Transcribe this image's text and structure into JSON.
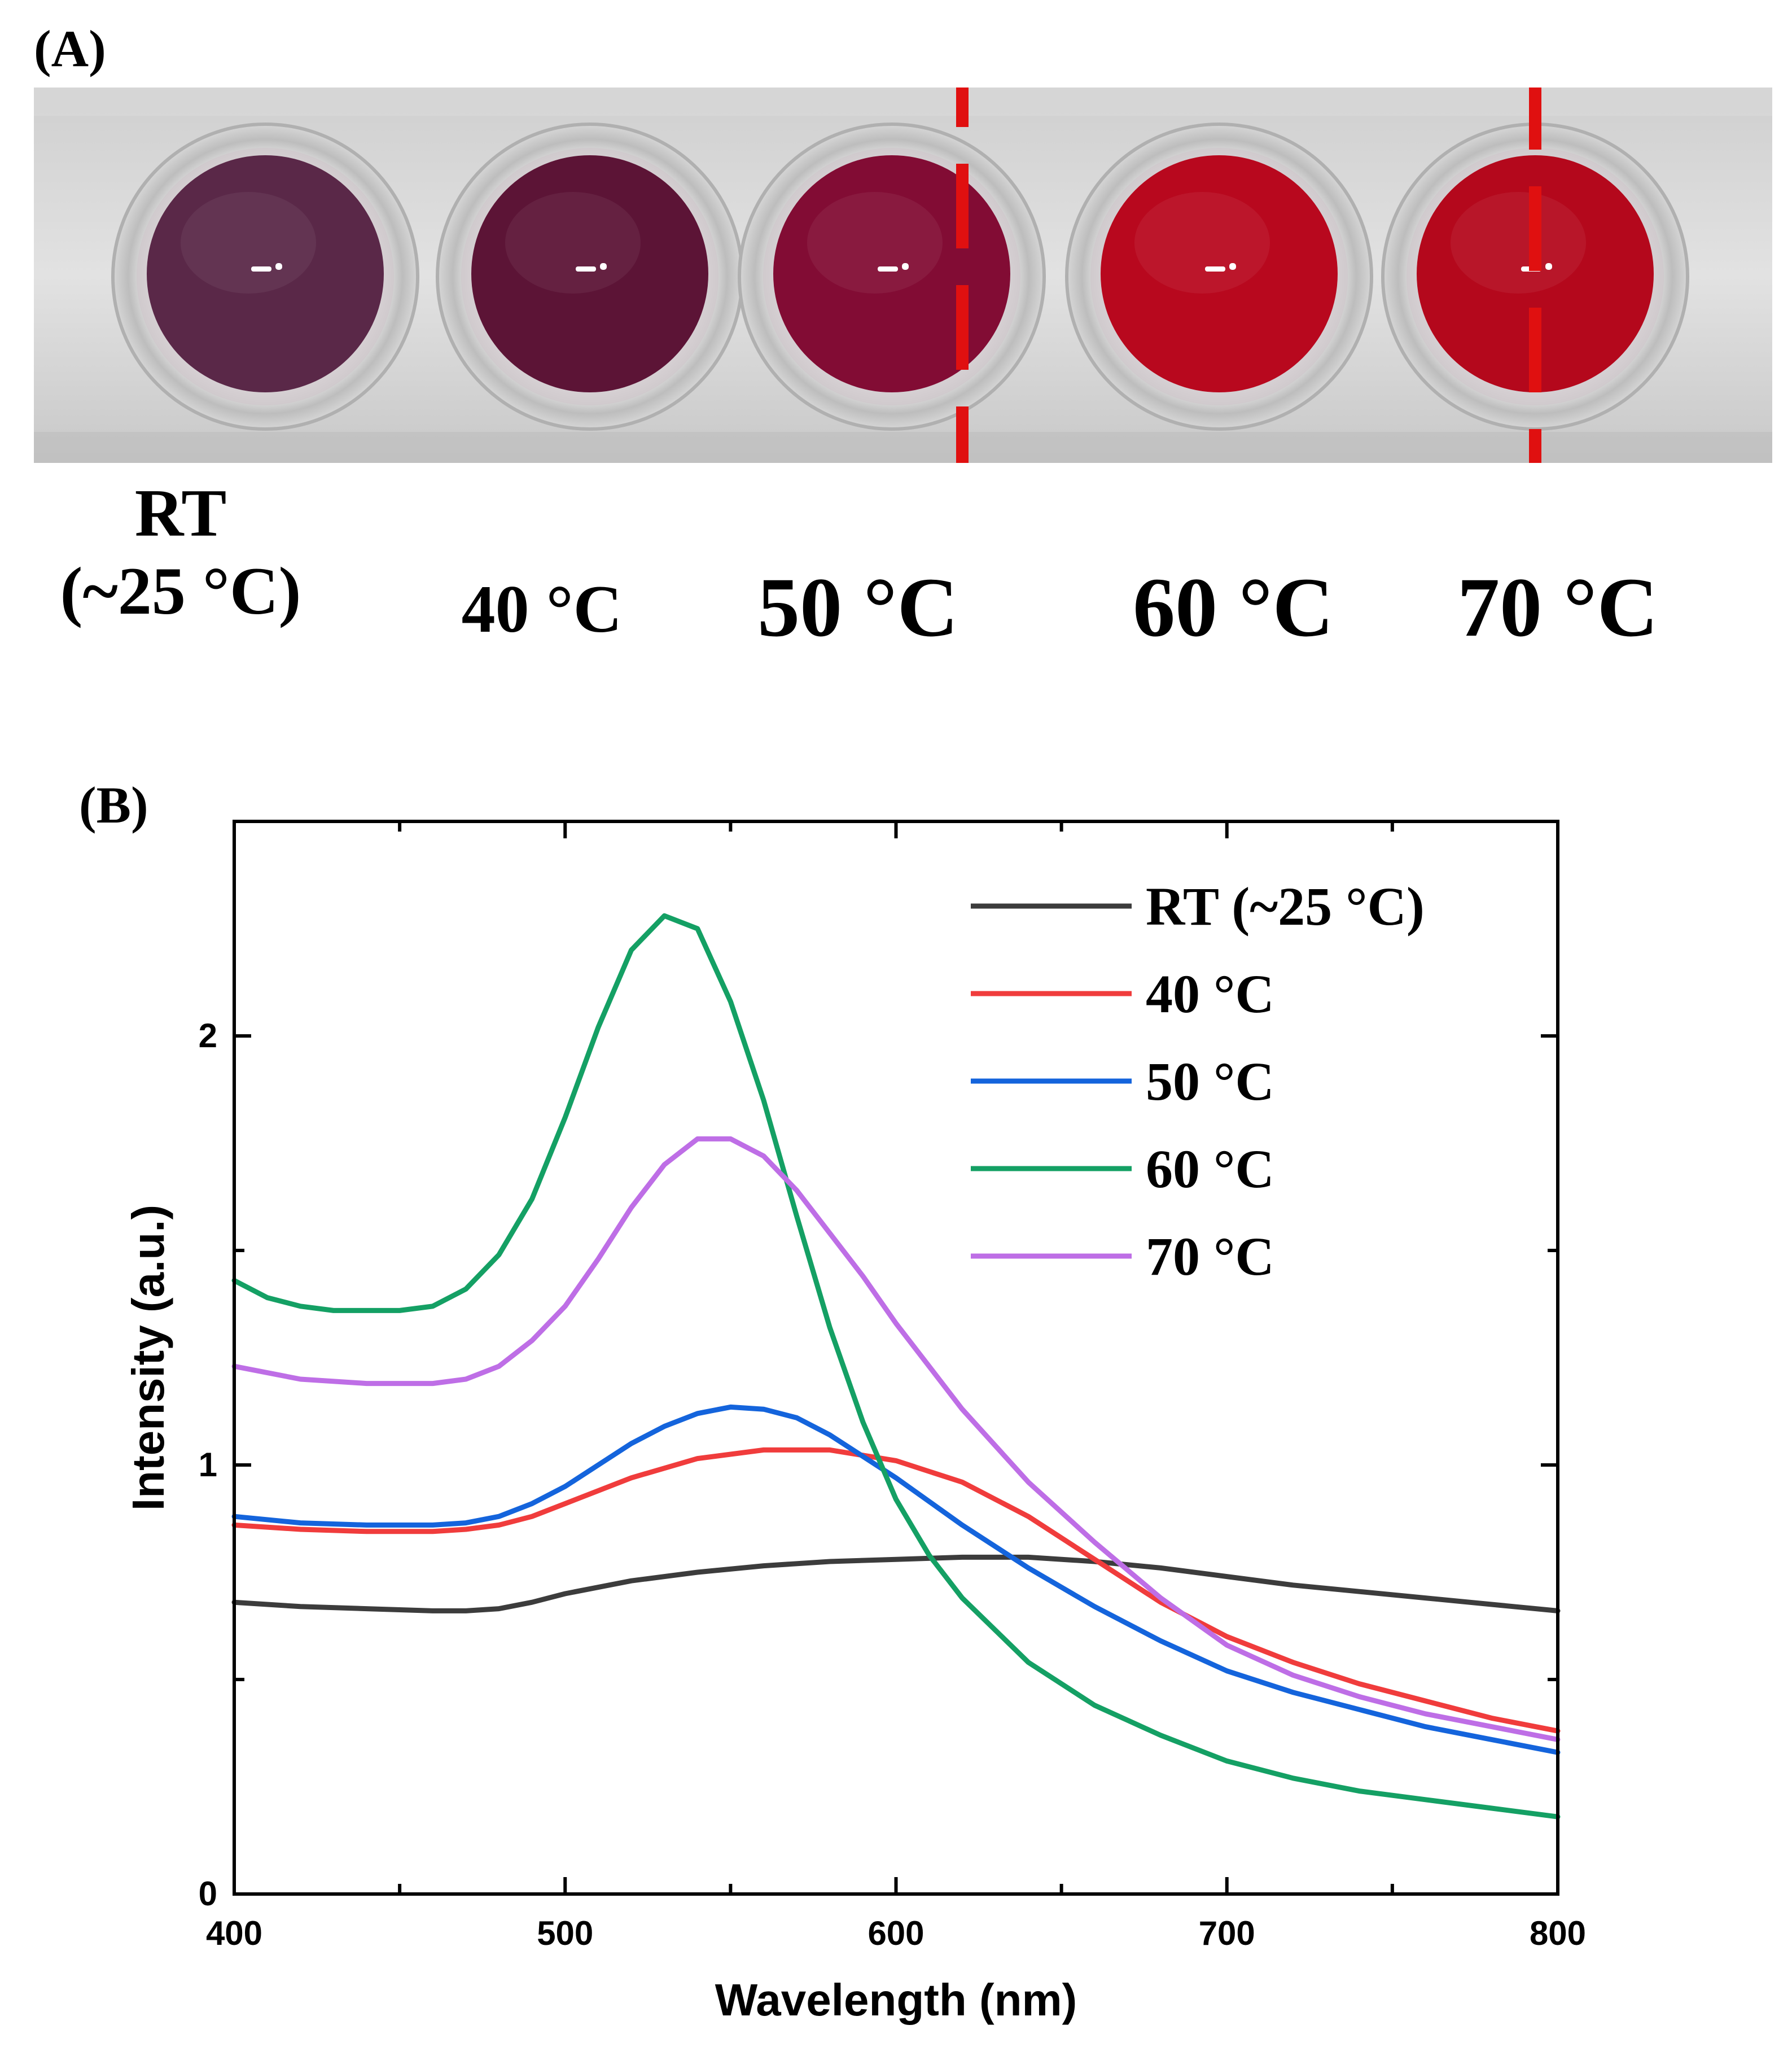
{
  "panel_a": {
    "label": "(A)",
    "wells": [
      {
        "line1": "RT",
        "line2": "(~25 °C)",
        "color": "#5a2848"
      },
      {
        "line1": "40 °C",
        "line2": "",
        "color": "#5c1436"
      },
      {
        "line1": "50 °C",
        "line2": "",
        "color": "#820c34"
      },
      {
        "line1": "60 °C",
        "line2": "",
        "color": "#b8081e"
      },
      {
        "line1": "70 °C",
        "line2": "",
        "color": "#b4081c"
      }
    ],
    "highlight_color": "#e01010"
  },
  "panel_b": {
    "label": "(B)"
  },
  "chart_data": {
    "type": "line",
    "xlabel": "Wavelength (nm)",
    "ylabel": "Intensity (a.u.)",
    "xlim": [
      400,
      800
    ],
    "ylim": [
      0,
      2.5
    ],
    "xticks": [
      400,
      500,
      600,
      700,
      800
    ],
    "yticks": [
      0,
      1,
      2
    ],
    "legend_position": "top-right",
    "series": [
      {
        "name": "RT (~25 °C)",
        "color": "#3c3c3c",
        "x": [
          400,
          420,
          440,
          460,
          470,
          480,
          490,
          500,
          520,
          540,
          560,
          580,
          600,
          620,
          640,
          660,
          680,
          700,
          720,
          740,
          760,
          780,
          800
        ],
        "y": [
          0.68,
          0.67,
          0.665,
          0.66,
          0.66,
          0.665,
          0.68,
          0.7,
          0.73,
          0.75,
          0.765,
          0.775,
          0.78,
          0.785,
          0.785,
          0.775,
          0.76,
          0.74,
          0.72,
          0.705,
          0.69,
          0.675,
          0.66
        ]
      },
      {
        "name": "40 °C",
        "color": "#f03c3c",
        "x": [
          400,
          420,
          440,
          460,
          470,
          480,
          490,
          500,
          520,
          540,
          560,
          580,
          600,
          620,
          640,
          660,
          680,
          700,
          720,
          740,
          760,
          780,
          800
        ],
        "y": [
          0.86,
          0.85,
          0.845,
          0.845,
          0.85,
          0.86,
          0.88,
          0.91,
          0.97,
          1.015,
          1.035,
          1.035,
          1.01,
          0.96,
          0.88,
          0.78,
          0.68,
          0.6,
          0.54,
          0.49,
          0.45,
          0.41,
          0.38
        ]
      },
      {
        "name": "50 °C",
        "color": "#1464dc",
        "x": [
          400,
          420,
          440,
          460,
          470,
          480,
          490,
          500,
          510,
          520,
          530,
          540,
          550,
          560,
          570,
          580,
          600,
          620,
          640,
          660,
          680,
          700,
          720,
          740,
          760,
          780,
          800
        ],
        "y": [
          0.88,
          0.865,
          0.86,
          0.86,
          0.865,
          0.88,
          0.91,
          0.95,
          1.0,
          1.05,
          1.09,
          1.12,
          1.135,
          1.13,
          1.11,
          1.07,
          0.97,
          0.86,
          0.76,
          0.67,
          0.59,
          0.52,
          0.47,
          0.43,
          0.39,
          0.36,
          0.33
        ]
      },
      {
        "name": "60 °C",
        "color": "#14a064",
        "x": [
          400,
          410,
          420,
          430,
          440,
          450,
          460,
          470,
          480,
          490,
          500,
          510,
          520,
          530,
          540,
          550,
          560,
          570,
          580,
          590,
          600,
          610,
          620,
          640,
          660,
          680,
          700,
          720,
          740,
          760,
          780,
          800
        ],
        "y": [
          1.43,
          1.39,
          1.37,
          1.36,
          1.36,
          1.36,
          1.37,
          1.41,
          1.49,
          1.62,
          1.81,
          2.02,
          2.2,
          2.28,
          2.25,
          2.08,
          1.85,
          1.58,
          1.32,
          1.1,
          0.92,
          0.79,
          0.69,
          0.54,
          0.44,
          0.37,
          0.31,
          0.27,
          0.24,
          0.22,
          0.2,
          0.18
        ]
      },
      {
        "name": "70 °C",
        "color": "#be6ee6",
        "x": [
          400,
          420,
          440,
          460,
          470,
          480,
          490,
          500,
          510,
          520,
          530,
          540,
          550,
          560,
          570,
          580,
          590,
          600,
          620,
          640,
          660,
          680,
          700,
          720,
          740,
          760,
          780,
          800
        ],
        "y": [
          1.23,
          1.2,
          1.19,
          1.19,
          1.2,
          1.23,
          1.29,
          1.37,
          1.48,
          1.6,
          1.7,
          1.76,
          1.76,
          1.72,
          1.64,
          1.54,
          1.44,
          1.33,
          1.13,
          0.96,
          0.82,
          0.69,
          0.58,
          0.51,
          0.46,
          0.42,
          0.39,
          0.36
        ]
      }
    ]
  }
}
